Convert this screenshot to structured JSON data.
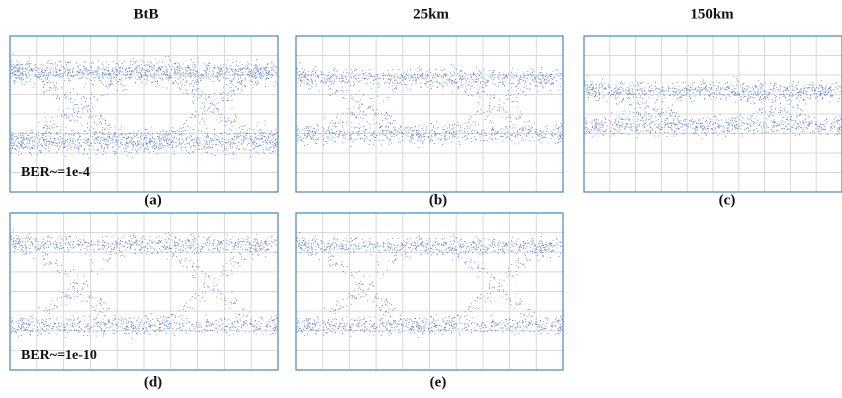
{
  "header": {
    "columns": [
      "BtB",
      "25km",
      "150km"
    ]
  },
  "panels": [
    {
      "label": "(a)",
      "note": "BER~=1e-4"
    },
    {
      "label": "(b)"
    },
    {
      "label": "(c)"
    },
    {
      "label": "(d)",
      "note": "BER~=1e-10"
    },
    {
      "label": "(e)"
    }
  ]
}
